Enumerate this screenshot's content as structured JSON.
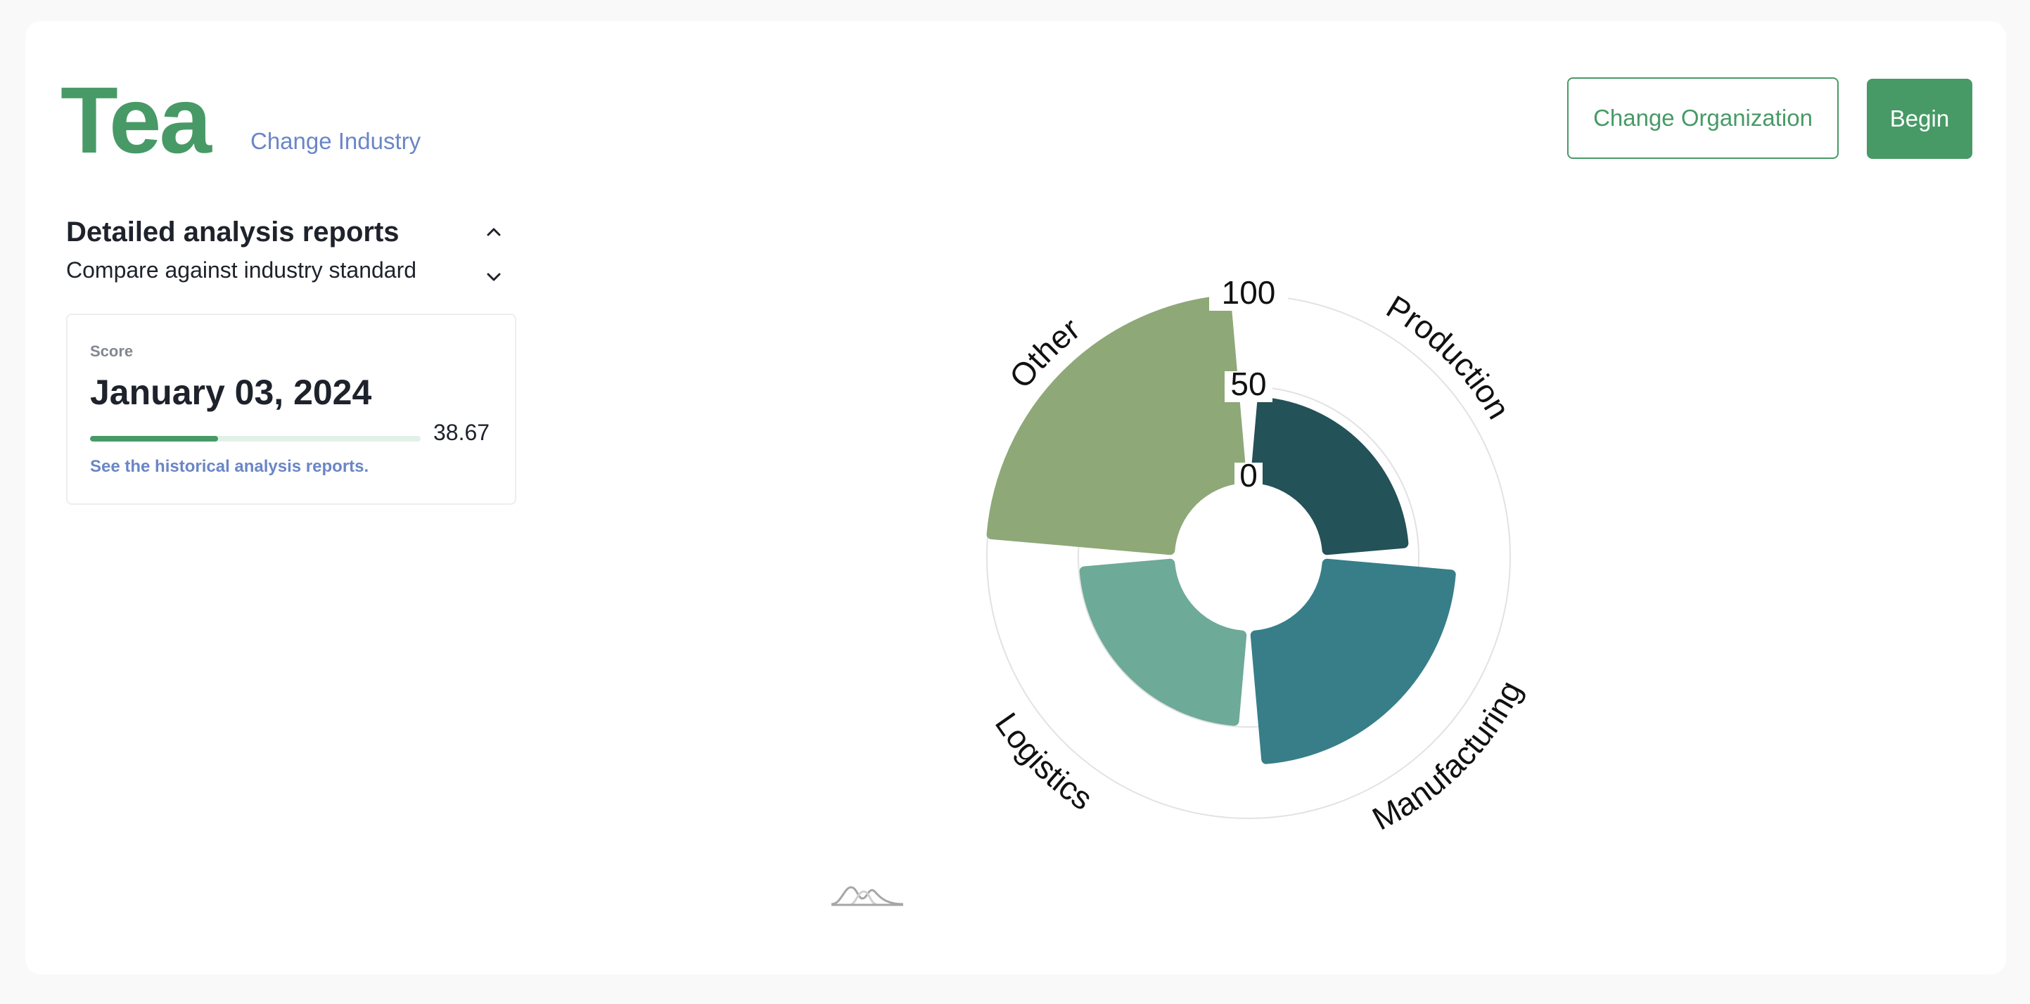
{
  "header": {
    "title": "Tea",
    "change_industry": "Change Industry",
    "change_org_button": "Change Organization",
    "begin_button": "Begin"
  },
  "reports": {
    "title": "Detailed analysis reports",
    "subtitle": "Compare against industry standard"
  },
  "score_card": {
    "label": "Score",
    "date": "January 03, 2024",
    "progress_value": "38.67",
    "progress_fraction": 0.3867,
    "link": "See the historical analysis reports."
  },
  "colors": {
    "brand": "#479a66",
    "link": "#6b86c6"
  },
  "chart_data": {
    "type": "polar-area",
    "categories": [
      "Production",
      "Manufacturing",
      "Logistics",
      "Other"
    ],
    "values": [
      42,
      68,
      47,
      98
    ],
    "colors": [
      "#235258",
      "#377e89",
      "#6eaa98",
      "#8ea877"
    ],
    "radial_ticks": [
      "0",
      "50",
      "100"
    ],
    "rlim": [
      0,
      100
    ],
    "grid": true
  }
}
